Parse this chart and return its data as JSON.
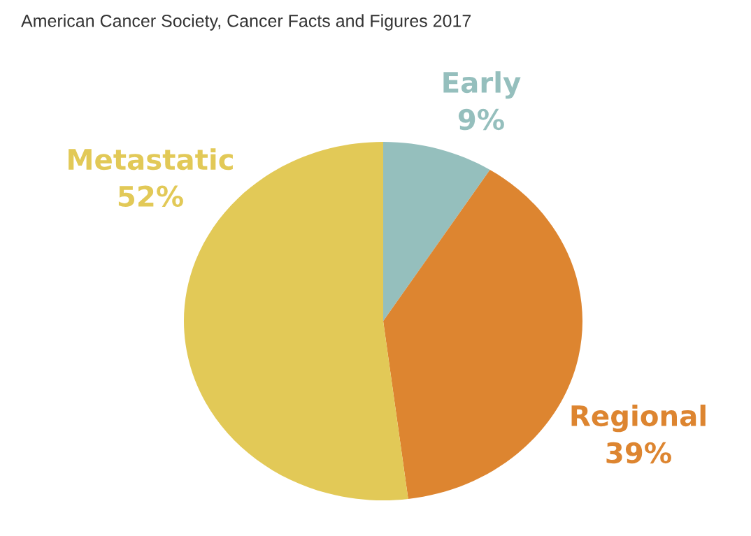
{
  "chart_data": {
    "type": "pie",
    "title": "American Cancer Society, Cancer Facts and Figures 2017",
    "categories": [
      "Early",
      "Regional",
      "Metastatic"
    ],
    "values": [
      9,
      39,
      52
    ],
    "colors": [
      "#95bfbd",
      "#dd8530",
      "#e2c957"
    ],
    "value_labels": [
      "9%",
      "39%",
      "52%"
    ]
  }
}
